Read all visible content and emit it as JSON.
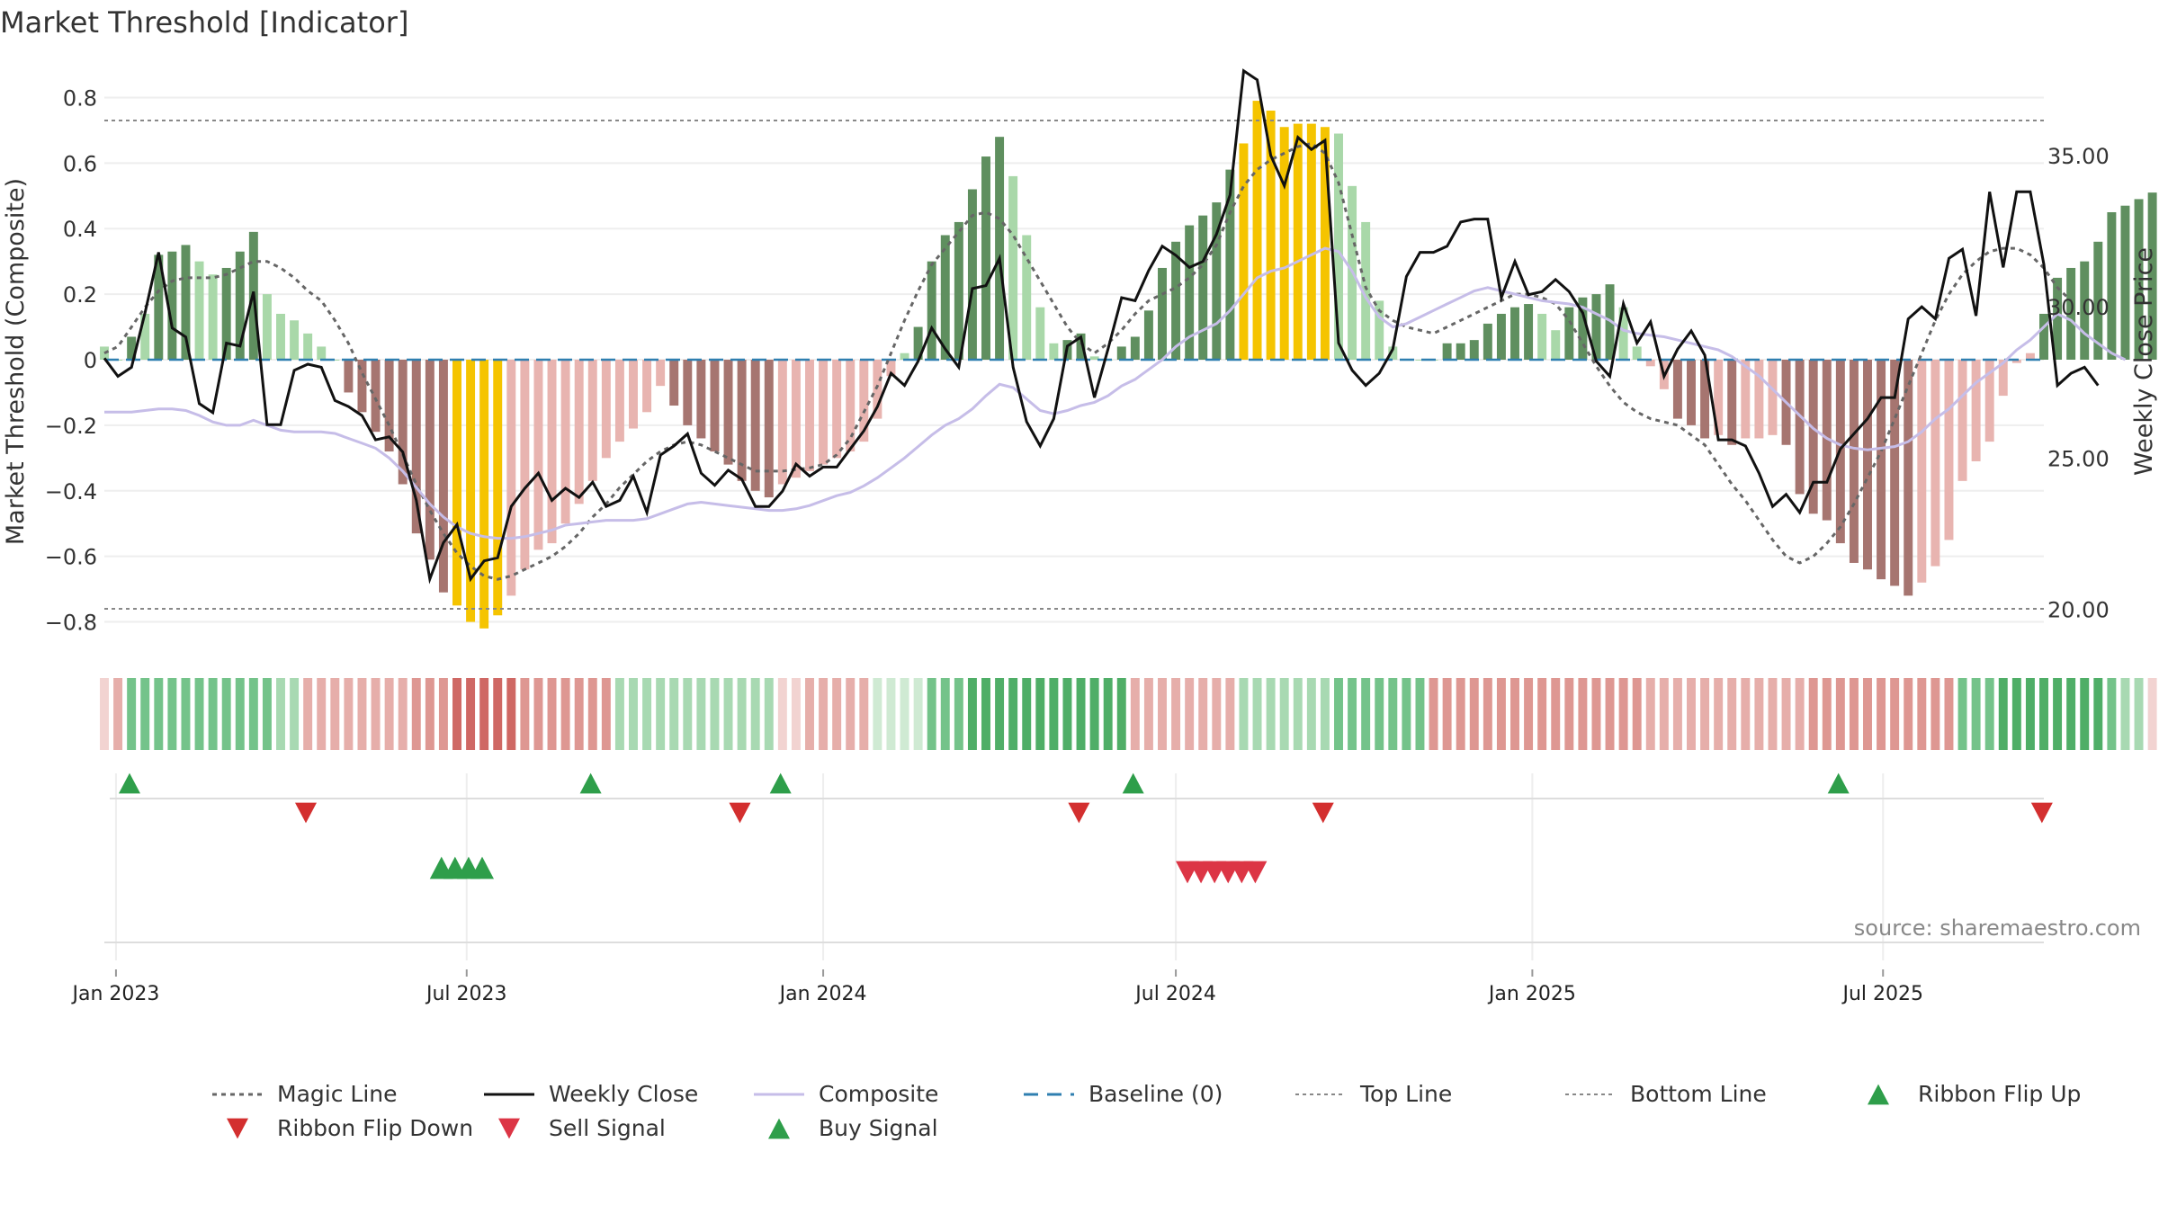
{
  "chart_data": {
    "type": "bar",
    "title": "Market Threshold [Indicator]",
    "ylabel": "Market Threshold (Composite)",
    "y2label": "Weekly Close Price",
    "ylim": [
      -0.9,
      0.9
    ],
    "y2lim": [
      18.5,
      38.0
    ],
    "x_start": "2022-12-26",
    "x_end": "2025-09-22",
    "yticks": [
      -0.8,
      -0.6,
      -0.4,
      -0.2,
      0,
      0.2,
      0.4,
      0.6,
      0.8
    ],
    "ytick_labels": [
      "−0.8",
      "−0.6",
      "−0.4",
      "−0.2",
      "0",
      "0.2",
      "0.4",
      "0.6",
      "0.8"
    ],
    "y2ticks": [
      20,
      25,
      30,
      35
    ],
    "y2tick_labels": [
      "20.00",
      "25.00",
      "30.00",
      "35.00"
    ],
    "xticks": [
      {
        "date": "2023-01-01",
        "label": "Jan 2023"
      },
      {
        "date": "2023-07-01",
        "label": "Jul 2023"
      },
      {
        "date": "2024-01-01",
        "label": "Jan 2024"
      },
      {
        "date": "2024-07-01",
        "label": "Jul 2024"
      },
      {
        "date": "2025-01-01",
        "label": "Jan 2025"
      },
      {
        "date": "2025-07-01",
        "label": "Jul 2025"
      }
    ],
    "top_line": 0.73,
    "bottom_line": -0.76,
    "baseline": 0,
    "histogram": [
      0.04,
      0.0,
      0.07,
      0.14,
      0.32,
      0.33,
      0.35,
      0.3,
      0.26,
      0.28,
      0.33,
      0.39,
      0.2,
      0.14,
      0.12,
      0.08,
      0.04,
      0.0,
      -0.1,
      -0.16,
      -0.22,
      -0.28,
      -0.38,
      -0.53,
      -0.61,
      -0.71,
      -0.75,
      -0.8,
      -0.82,
      -0.78,
      -0.72,
      -0.64,
      -0.58,
      -0.56,
      -0.5,
      -0.44,
      -0.37,
      -0.3,
      -0.25,
      -0.21,
      -0.16,
      -0.08,
      -0.14,
      -0.2,
      -0.24,
      -0.28,
      -0.32,
      -0.37,
      -0.4,
      -0.42,
      -0.38,
      -0.36,
      -0.34,
      -0.32,
      -0.3,
      -0.28,
      -0.25,
      -0.18,
      -0.05,
      0.02,
      0.1,
      0.3,
      0.38,
      0.42,
      0.52,
      0.62,
      0.68,
      0.56,
      0.38,
      0.16,
      0.05,
      0.06,
      0.08,
      0.01,
      0.0,
      0.04,
      0.07,
      0.15,
      0.28,
      0.36,
      0.41,
      0.44,
      0.48,
      0.58,
      0.66,
      0.79,
      0.76,
      0.71,
      0.72,
      0.72,
      0.71,
      0.69,
      0.53,
      0.42,
      0.18,
      0.04,
      0.0,
      0.0,
      0.0,
      0.05,
      0.05,
      0.06,
      0.11,
      0.14,
      0.16,
      0.17,
      0.14,
      0.09,
      0.16,
      0.19,
      0.2,
      0.23,
      0.16,
      0.04,
      -0.02,
      -0.09,
      -0.18,
      -0.2,
      -0.24,
      -0.23,
      -0.26,
      -0.24,
      -0.24,
      -0.23,
      -0.26,
      -0.41,
      -0.47,
      -0.49,
      -0.56,
      -0.62,
      -0.64,
      -0.67,
      -0.69,
      -0.72,
      -0.68,
      -0.63,
      -0.55,
      -0.37,
      -0.31,
      -0.25,
      -0.11,
      -0.01,
      0.02,
      0.14,
      0.25,
      0.28,
      0.3,
      0.36,
      0.45,
      0.47,
      0.49,
      0.51,
      0.44,
      0.28,
      0.05,
      0.03,
      -0.08
    ],
    "histogram_colors": [
      "#a9d8a9",
      "#a9d8a9",
      "#5f8f5f",
      "#a9d8a9",
      "#5f8f5f",
      "#5f8f5f",
      "#5f8f5f",
      "#a9d8a9",
      "#a9d8a9",
      "#5f8f5f",
      "#5f8f5f",
      "#5f8f5f",
      "#a9d8a9",
      "#a9d8a9",
      "#a9d8a9",
      "#a9d8a9",
      "#a9d8a9",
      "#a9d8a9",
      "#a67570",
      "#a67570",
      "#a67570",
      "#a67570",
      "#a67570",
      "#a67570",
      "#a67570",
      "#a67570",
      "#f5c400",
      "#f5c400",
      "#f5c400",
      "#f5c400",
      "#e8b4b0",
      "#e8b4b0",
      "#e8b4b0",
      "#e8b4b0",
      "#e8b4b0",
      "#e8b4b0",
      "#e8b4b0",
      "#e8b4b0",
      "#e8b4b0",
      "#e8b4b0",
      "#e8b4b0",
      "#e8b4b0",
      "#a67570",
      "#a67570",
      "#a67570",
      "#a67570",
      "#a67570",
      "#a67570",
      "#a67570",
      "#a67570",
      "#e8b4b0",
      "#e8b4b0",
      "#e8b4b0",
      "#e8b4b0",
      "#e8b4b0",
      "#e8b4b0",
      "#e8b4b0",
      "#e8b4b0",
      "#e8b4b0",
      "#a9d8a9",
      "#5f8f5f",
      "#5f8f5f",
      "#5f8f5f",
      "#5f8f5f",
      "#5f8f5f",
      "#5f8f5f",
      "#5f8f5f",
      "#a9d8a9",
      "#a9d8a9",
      "#a9d8a9",
      "#a9d8a9",
      "#5f8f5f",
      "#5f8f5f",
      "#a9d8a9",
      "#a9d8a9",
      "#5f8f5f",
      "#5f8f5f",
      "#5f8f5f",
      "#5f8f5f",
      "#5f8f5f",
      "#5f8f5f",
      "#5f8f5f",
      "#5f8f5f",
      "#5f8f5f",
      "#f5c400",
      "#f5c400",
      "#f5c400",
      "#f5c400",
      "#f5c400",
      "#f5c400",
      "#f5c400",
      "#a9d8a9",
      "#a9d8a9",
      "#a9d8a9",
      "#a9d8a9",
      "#a9d8a9",
      "#a9d8a9",
      "#a9d8a9",
      "#a9d8a9",
      "#5f8f5f",
      "#5f8f5f",
      "#5f8f5f",
      "#5f8f5f",
      "#5f8f5f",
      "#5f8f5f",
      "#5f8f5f",
      "#a9d8a9",
      "#a9d8a9",
      "#5f8f5f",
      "#5f8f5f",
      "#5f8f5f",
      "#5f8f5f",
      "#a9d8a9",
      "#a9d8a9",
      "#e8b4b0",
      "#e8b4b0",
      "#a67570",
      "#a67570",
      "#a67570",
      "#e8b4b0",
      "#a67570",
      "#e8b4b0",
      "#e8b4b0",
      "#e8b4b0",
      "#a67570",
      "#a67570",
      "#a67570",
      "#a67570",
      "#a67570",
      "#a67570",
      "#a67570",
      "#a67570",
      "#a67570",
      "#a67570",
      "#e8b4b0",
      "#e8b4b0",
      "#e8b4b0",
      "#e8b4b0",
      "#e8b4b0",
      "#e8b4b0",
      "#e8b4b0",
      "#e8b4b0",
      "#e8b4b0",
      "#5f8f5f",
      "#5f8f5f",
      "#5f8f5f",
      "#5f8f5f",
      "#5f8f5f",
      "#5f8f5f",
      "#5f8f5f",
      "#5f8f5f",
      "#5f8f5f",
      "#a9d8a9",
      "#a9d8a9",
      "#a9d8a9",
      "#a9d8a9",
      "#e8b4b0"
    ],
    "weekly_close": [
      28.3,
      27.7,
      28.0,
      29.8,
      31.8,
      29.3,
      29.0,
      26.8,
      26.5,
      28.8,
      28.7,
      30.5,
      26.1,
      26.1,
      27.9,
      28.1,
      28.0,
      26.9,
      26.7,
      26.4,
      25.6,
      25.7,
      25.2,
      23.6,
      21.0,
      22.2,
      22.8,
      21.0,
      21.6,
      21.7,
      23.4,
      24.0,
      24.5,
      23.6,
      24.0,
      23.7,
      24.2,
      23.4,
      23.6,
      24.4,
      23.2,
      25.1,
      25.4,
      25.8,
      24.5,
      24.1,
      24.6,
      24.3,
      23.4,
      23.4,
      23.9,
      24.8,
      24.4,
      24.7,
      24.7,
      25.3,
      25.9,
      26.7,
      27.8,
      27.4,
      28.2,
      29.3,
      28.6,
      28.0,
      30.6,
      30.7,
      31.6,
      28.0,
      26.2,
      25.4,
      26.3,
      28.7,
      29.0,
      27.0,
      28.6,
      30.3,
      30.2,
      31.2,
      32.0,
      31.7,
      31.3,
      31.5,
      32.4,
      33.7,
      37.8,
      37.5,
      35.0,
      34.0,
      35.6,
      35.2,
      35.5,
      28.8,
      27.9,
      27.4,
      27.8,
      28.6,
      31.0,
      31.8,
      31.8,
      32.0,
      32.8,
      32.9,
      32.9,
      30.3,
      31.5,
      30.4,
      30.5,
      30.9,
      30.5,
      29.8,
      28.2,
      27.7,
      30.1,
      28.8,
      29.5,
      27.7,
      28.6,
      29.2,
      28.4,
      25.6,
      25.6,
      25.4,
      24.5,
      23.4,
      23.8,
      23.2,
      24.2,
      24.2,
      25.3,
      25.8,
      26.3,
      27.0,
      27.0,
      29.6,
      30.0,
      29.6,
      31.6,
      31.9,
      29.7,
      33.8,
      31.3,
      33.8,
      33.8,
      31.4,
      27.4,
      27.8,
      28.0,
      27.4
    ],
    "composite": [
      -0.16,
      -0.16,
      -0.16,
      -0.155,
      -0.15,
      -0.15,
      -0.155,
      -0.17,
      -0.19,
      -0.2,
      -0.2,
      -0.185,
      -0.2,
      -0.215,
      -0.22,
      -0.22,
      -0.22,
      -0.225,
      -0.24,
      -0.255,
      -0.27,
      -0.3,
      -0.34,
      -0.39,
      -0.44,
      -0.48,
      -0.51,
      -0.53,
      -0.54,
      -0.545,
      -0.545,
      -0.54,
      -0.53,
      -0.52,
      -0.505,
      -0.5,
      -0.495,
      -0.49,
      -0.49,
      -0.49,
      -0.485,
      -0.47,
      -0.455,
      -0.44,
      -0.435,
      -0.44,
      -0.445,
      -0.45,
      -0.455,
      -0.46,
      -0.46,
      -0.455,
      -0.445,
      -0.43,
      -0.415,
      -0.405,
      -0.385,
      -0.36,
      -0.33,
      -0.3,
      -0.265,
      -0.23,
      -0.2,
      -0.18,
      -0.15,
      -0.11,
      -0.075,
      -0.085,
      -0.12,
      -0.155,
      -0.165,
      -0.155,
      -0.14,
      -0.13,
      -0.11,
      -0.08,
      -0.06,
      -0.03,
      0.0,
      0.04,
      0.07,
      0.09,
      0.11,
      0.15,
      0.2,
      0.25,
      0.27,
      0.28,
      0.3,
      0.32,
      0.34,
      0.33,
      0.27,
      0.19,
      0.13,
      0.1,
      0.11,
      0.13,
      0.15,
      0.17,
      0.19,
      0.21,
      0.22,
      0.21,
      0.2,
      0.19,
      0.18,
      0.175,
      0.17,
      0.16,
      0.14,
      0.12,
      0.09,
      0.08,
      0.075,
      0.07,
      0.06,
      0.05,
      0.04,
      0.03,
      0.01,
      -0.02,
      -0.05,
      -0.09,
      -0.13,
      -0.17,
      -0.21,
      -0.24,
      -0.26,
      -0.27,
      -0.275,
      -0.27,
      -0.265,
      -0.25,
      -0.22,
      -0.18,
      -0.15,
      -0.11,
      -0.07,
      -0.04,
      -0.01,
      0.03,
      0.06,
      0.1,
      0.14,
      0.12,
      0.08,
      0.05,
      0.02,
      0.0
    ],
    "magic_line": [
      0.02,
      0.04,
      0.1,
      0.16,
      0.21,
      0.24,
      0.25,
      0.25,
      0.25,
      0.26,
      0.28,
      0.3,
      0.3,
      0.28,
      0.25,
      0.21,
      0.18,
      0.12,
      0.05,
      -0.04,
      -0.12,
      -0.2,
      -0.29,
      -0.38,
      -0.46,
      -0.53,
      -0.59,
      -0.63,
      -0.66,
      -0.67,
      -0.66,
      -0.64,
      -0.62,
      -0.6,
      -0.57,
      -0.53,
      -0.48,
      -0.44,
      -0.39,
      -0.35,
      -0.31,
      -0.28,
      -0.26,
      -0.25,
      -0.26,
      -0.28,
      -0.3,
      -0.32,
      -0.34,
      -0.34,
      -0.34,
      -0.335,
      -0.33,
      -0.32,
      -0.29,
      -0.24,
      -0.16,
      -0.08,
      0.02,
      0.12,
      0.21,
      0.29,
      0.34,
      0.39,
      0.44,
      0.45,
      0.43,
      0.38,
      0.31,
      0.24,
      0.17,
      0.1,
      0.05,
      0.02,
      0.05,
      0.09,
      0.14,
      0.18,
      0.2,
      0.22,
      0.25,
      0.29,
      0.35,
      0.45,
      0.53,
      0.58,
      0.61,
      0.63,
      0.65,
      0.66,
      0.63,
      0.54,
      0.38,
      0.22,
      0.15,
      0.12,
      0.1,
      0.09,
      0.08,
      0.1,
      0.12,
      0.14,
      0.16,
      0.18,
      0.2,
      0.2,
      0.19,
      0.17,
      0.12,
      0.05,
      -0.02,
      -0.08,
      -0.13,
      -0.16,
      -0.18,
      -0.19,
      -0.2,
      -0.23,
      -0.26,
      -0.32,
      -0.38,
      -0.43,
      -0.49,
      -0.55,
      -0.6,
      -0.62,
      -0.6,
      -0.56,
      -0.51,
      -0.44,
      -0.36,
      -0.28,
      -0.18,
      -0.08,
      0.02,
      0.12,
      0.2,
      0.26,
      0.3,
      0.33,
      0.34,
      0.34,
      0.32,
      0.28,
      0.22,
      0.18
    ],
    "ribbon_colors": [
      "#f2d3d1",
      "#e6aeaa",
      "#74c38a",
      "#74c38a",
      "#74c38a",
      "#74c38a",
      "#74c38a",
      "#74c38a",
      "#74c38a",
      "#74c38a",
      "#74c38a",
      "#74c38a",
      "#74c38a",
      "#a8d9b2",
      "#a8d9b2",
      "#e6aeaa",
      "#e6aeaa",
      "#e6aeaa",
      "#e6aeaa",
      "#e6aeaa",
      "#e6aeaa",
      "#e6aeaa",
      "#e6aeaa",
      "#de9792",
      "#de9792",
      "#de9792",
      "#cf6864",
      "#cf6864",
      "#cf6864",
      "#cf6864",
      "#cf6864",
      "#de9792",
      "#de9792",
      "#de9792",
      "#de9792",
      "#de9792",
      "#de9792",
      "#de9792",
      "#a8d9b2",
      "#a8d9b2",
      "#a8d9b2",
      "#a8d9b2",
      "#a8d9b2",
      "#a8d9b2",
      "#a8d9b2",
      "#a8d9b2",
      "#a8d9b2",
      "#a8d9b2",
      "#a8d9b2",
      "#a8d9b2",
      "#f2d3d1",
      "#f2d3d1",
      "#e6aeaa",
      "#e6aeaa",
      "#e6aeaa",
      "#e6aeaa",
      "#e6aeaa",
      "#cfead3",
      "#cfead3",
      "#cfead3",
      "#cfead3",
      "#74c38a",
      "#74c38a",
      "#74c38a",
      "#4fae67",
      "#4fae67",
      "#4fae67",
      "#4fae67",
      "#4fae67",
      "#4fae67",
      "#4fae67",
      "#4fae67",
      "#4fae67",
      "#4fae67",
      "#4fae67",
      "#4fae67",
      "#e6aeaa",
      "#e6aeaa",
      "#e6aeaa",
      "#e6aeaa",
      "#e6aeaa",
      "#e6aeaa",
      "#e6aeaa",
      "#e6aeaa",
      "#a8d9b2",
      "#a8d9b2",
      "#a8d9b2",
      "#a8d9b2",
      "#a8d9b2",
      "#a8d9b2",
      "#a8d9b2",
      "#74c38a",
      "#74c38a",
      "#74c38a",
      "#74c38a",
      "#74c38a",
      "#74c38a",
      "#74c38a",
      "#de9792",
      "#de9792",
      "#de9792",
      "#de9792",
      "#de9792",
      "#de9792",
      "#de9792",
      "#de9792",
      "#de9792",
      "#de9792",
      "#de9792",
      "#de9792",
      "#de9792",
      "#de9792",
      "#de9792",
      "#de9792",
      "#e6aeaa",
      "#e6aeaa",
      "#e6aeaa",
      "#e6aeaa",
      "#e6aeaa",
      "#e6aeaa",
      "#e6aeaa",
      "#e6aeaa",
      "#e6aeaa",
      "#e6aeaa",
      "#e6aeaa",
      "#e6aeaa",
      "#de9792",
      "#de9792",
      "#de9792",
      "#de9792",
      "#de9792",
      "#de9792",
      "#de9792",
      "#de9792",
      "#de9792",
      "#de9792",
      "#de9792",
      "#74c38a",
      "#74c38a",
      "#74c38a",
      "#4fae67",
      "#4fae67",
      "#4fae67",
      "#4fae67",
      "#4fae67",
      "#4fae67",
      "#4fae67",
      "#4fae67",
      "#74c38a",
      "#a8d9b2",
      "#a8d9b2",
      "#f2d3d1"
    ],
    "ribbon_flip_up": [
      "2023-01-08",
      "2023-09-03",
      "2023-12-10",
      "2024-06-09",
      "2025-06-08"
    ],
    "ribbon_flip_down": [
      "2023-04-09",
      "2023-11-19",
      "2024-05-12",
      "2024-09-15",
      "2025-09-21"
    ],
    "buy_signals": [
      "2023-06-18",
      "2023-06-25",
      "2023-07-02",
      "2023-07-09"
    ],
    "sell_signals": [
      "2024-07-07",
      "2024-07-14",
      "2024-07-21",
      "2024-07-28",
      "2024-08-04",
      "2024-08-11"
    ],
    "legend": [
      {
        "label": "Magic Line",
        "kind": "line-dotted",
        "color": "#666666"
      },
      {
        "label": "Weekly Close",
        "kind": "line-solid",
        "color": "#111111"
      },
      {
        "label": "Composite",
        "kind": "line-solid",
        "color": "#c6bde8"
      },
      {
        "label": "Baseline (0)",
        "kind": "line-dashed",
        "color": "#2f7fb0"
      },
      {
        "label": "Top Line",
        "kind": "line-dotted-thin",
        "color": "#888888"
      },
      {
        "label": "Bottom Line",
        "kind": "line-dotted-thin",
        "color": "#888888"
      },
      {
        "label": "Ribbon Flip Up",
        "kind": "triangle-up",
        "color": "#2e9e4a"
      },
      {
        "label": "Ribbon Flip Down",
        "kind": "triangle-down",
        "color": "#d32f2f"
      },
      {
        "label": "Sell Signal",
        "kind": "triangle-down",
        "color": "#dc3545"
      },
      {
        "label": "Buy Signal",
        "kind": "triangle-up",
        "color": "#2e9e4a"
      }
    ],
    "source": "source: sharemaestro.com",
    "colors": {
      "magic_line": "#666666",
      "weekly_close": "#111111",
      "composite": "#c6bde8",
      "baseline": "#2f7fb0",
      "threshold_lines": "#888888",
      "flip_up": "#2e9e4a",
      "flip_down": "#d32f2f",
      "sell": "#dc3545",
      "buy": "#2e9e4a"
    }
  }
}
